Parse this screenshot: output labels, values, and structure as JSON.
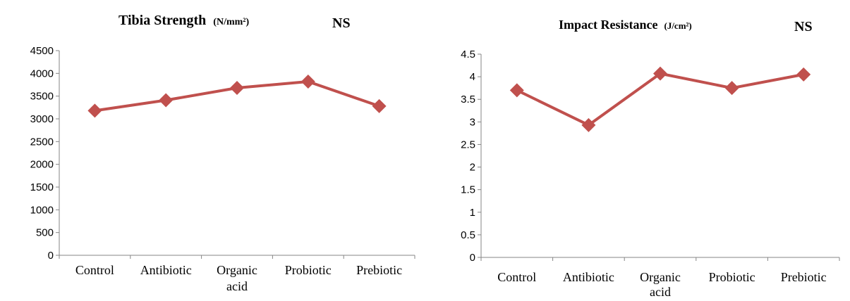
{
  "chart_data": [
    {
      "type": "line",
      "title": "Tibia  Strength",
      "title_unit": "(N/mm²)",
      "significance": "NS",
      "categories": [
        "Control",
        "Antibiotic",
        "Organic acid",
        "Probiotic",
        "Prebiotic"
      ],
      "category_lines": [
        [
          "Control"
        ],
        [
          "Antibiotic"
        ],
        [
          "Organic",
          "acid"
        ],
        [
          "Probiotic"
        ],
        [
          "Prebiotic"
        ]
      ],
      "series": [
        {
          "values": [
            3180,
            3410,
            3680,
            3820,
            3280
          ],
          "color": "#c0504d",
          "marker": "diamond"
        }
      ],
      "ylim": [
        0,
        4500
      ],
      "yticks": [
        "0",
        "500",
        "1000",
        "1500",
        "2000",
        "2500",
        "3000",
        "3500",
        "4000",
        "4500"
      ],
      "grid": false
    },
    {
      "type": "line",
      "title": "Impact Resistance",
      "title_unit": "(J/cm²)",
      "significance": "NS",
      "categories": [
        "Control",
        "Antibiotic",
        "Organic acid",
        "Probiotic",
        "Prebiotic"
      ],
      "category_lines": [
        [
          "Control"
        ],
        [
          "Antibiotic"
        ],
        [
          "Organic",
          "acid"
        ],
        [
          "Probiotic"
        ],
        [
          "Prebiotic"
        ]
      ],
      "series": [
        {
          "values": [
            3.7,
            2.93,
            4.07,
            3.75,
            4.05
          ],
          "color": "#c0504d",
          "marker": "diamond"
        }
      ],
      "ylim": [
        0,
        4.5
      ],
      "yticks": [
        "0",
        "0.5",
        "1",
        "1.5",
        "2",
        "2.5",
        "3",
        "3.5",
        "4",
        "4.5"
      ],
      "grid": false
    }
  ]
}
